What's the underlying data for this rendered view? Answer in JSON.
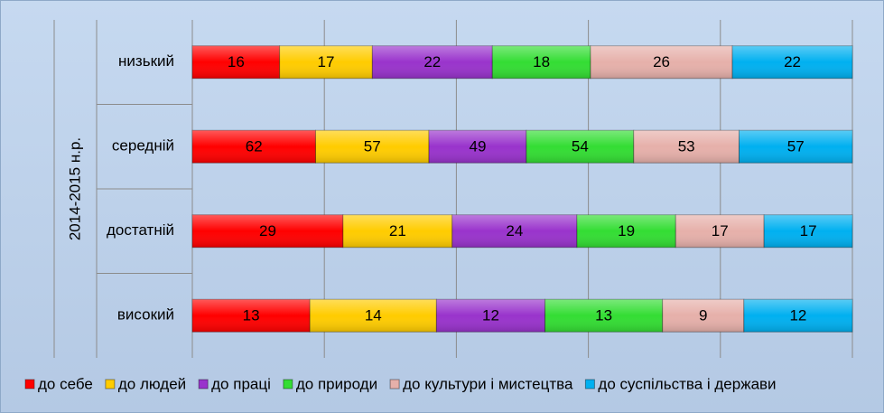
{
  "chart_data": {
    "type": "bar",
    "orientation": "horizontal",
    "stacked": "percent",
    "group_label": "2014-2015 н.р.",
    "categories": [
      "низький",
      "середній",
      "достатній",
      "високий"
    ],
    "series": [
      {
        "name": "до себе",
        "color": "#ff0000",
        "values": [
          16,
          62,
          29,
          13
        ]
      },
      {
        "name": "до людей",
        "color": "#ffcc00",
        "values": [
          17,
          57,
          21,
          14
        ]
      },
      {
        "name": "до праці",
        "color": "#9933cc",
        "values": [
          22,
          49,
          24,
          12
        ]
      },
      {
        "name": "до природи",
        "color": "#33dd33",
        "values": [
          18,
          54,
          19,
          13
        ]
      },
      {
        "name": "до культури і мистецтва",
        "color": "#e6b0aa",
        "values": [
          26,
          53,
          17,
          9
        ]
      },
      {
        "name": "до суспільства і держави",
        "color": "#00b0f0",
        "values": [
          22,
          57,
          17,
          12
        ]
      }
    ],
    "xlim": [
      0,
      100
    ],
    "xticks": [
      0,
      20,
      40,
      60,
      80,
      100
    ],
    "grid": true,
    "legend": "bottom"
  }
}
